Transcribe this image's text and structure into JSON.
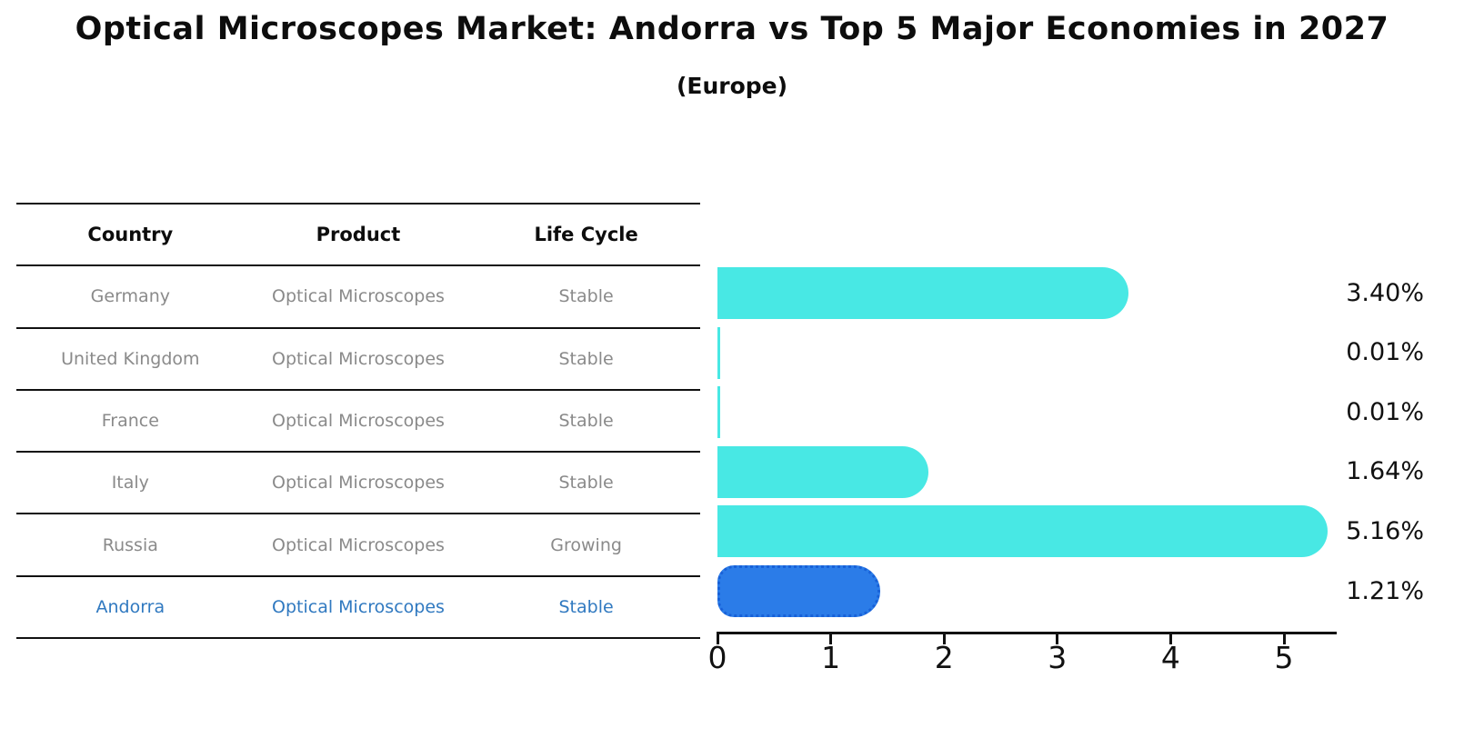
{
  "header": {
    "title": "Optical Microscopes Market: Andorra vs Top 5 Major Economies in 2027",
    "subtitle": "(Europe)"
  },
  "table": {
    "headers": [
      "Country",
      "Product",
      "Life Cycle"
    ],
    "rows": [
      {
        "country": "Germany",
        "product": "Optical Microscopes",
        "life_cycle": "Stable"
      },
      {
        "country": "United Kingdom",
        "product": "Optical Microscopes",
        "life_cycle": "Stable"
      },
      {
        "country": "France",
        "product": "Optical Microscopes",
        "life_cycle": "Stable"
      },
      {
        "country": "Italy",
        "product": "Optical Microscopes",
        "life_cycle": "Stable"
      },
      {
        "country": "Russia",
        "product": "Optical Microscopes",
        "life_cycle": "Growing"
      },
      {
        "country": "Andorra",
        "product": "Optical Microscopes",
        "life_cycle": "Stable"
      }
    ],
    "highlight_row": 5,
    "highlight_text_color": "#3079c0",
    "row_text_color": "#8a8a8a"
  },
  "chart_data": {
    "type": "bar",
    "orientation": "horizontal",
    "title": "Optical Microscopes Market: Andorra vs Top 5 Major Economies in 2027 (Europe)",
    "categories": [
      "Germany",
      "United Kingdom",
      "France",
      "Italy",
      "Russia",
      "Andorra"
    ],
    "values": [
      3.4,
      0.01,
      0.01,
      1.64,
      5.16,
      1.21
    ],
    "value_labels": [
      "3.40%",
      "0.01%",
      "0.01%",
      "1.64%",
      "5.16%",
      "1.21%"
    ],
    "x_ticks": [
      "0",
      "1",
      "2",
      "3",
      "4",
      "5"
    ],
    "xlim": [
      0,
      5.46
    ],
    "grid": false,
    "bar_color": "#48e8e4",
    "highlight_color": "#2b7ce8",
    "highlight_border_color": "#1861d8",
    "highlight_index": 5
  }
}
